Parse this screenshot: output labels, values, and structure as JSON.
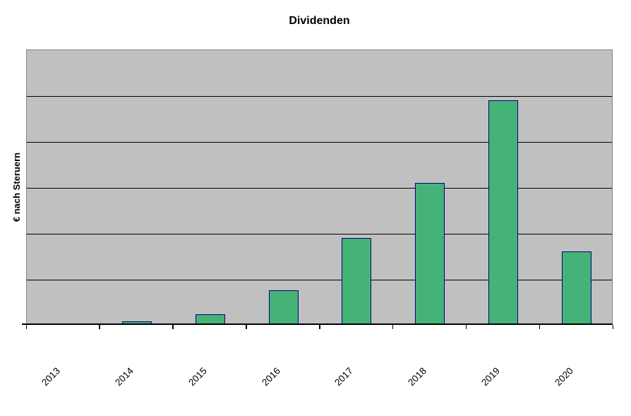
{
  "chart_data": {
    "type": "bar",
    "title": "Dividenden",
    "ylabel": "€ nach Steruern",
    "xlabel": "",
    "categories": [
      "2013",
      "2014",
      "2015",
      "2016",
      "2017",
      "2018",
      "2019",
      "2020"
    ],
    "values": [
      0,
      0.08,
      0.23,
      0.75,
      1.9,
      3.1,
      4.9,
      1.6
    ],
    "value_note": "y-axis shows no numeric tick labels; values estimated in units of one gridline interval",
    "ylim": [
      0,
      6
    ],
    "y_gridline_step": 1,
    "grid": "horizontal-only",
    "legend": "none",
    "x_tick_label_rotation_deg": 45,
    "colors": {
      "page_background": "#FFFFFF",
      "plot_background": "#C0C0C0",
      "plot_border": "#848484",
      "gridline": "#000000",
      "axis": "#000000",
      "bar_fill": "#45B377",
      "bar_border": "#000080",
      "text": "#000000"
    }
  }
}
